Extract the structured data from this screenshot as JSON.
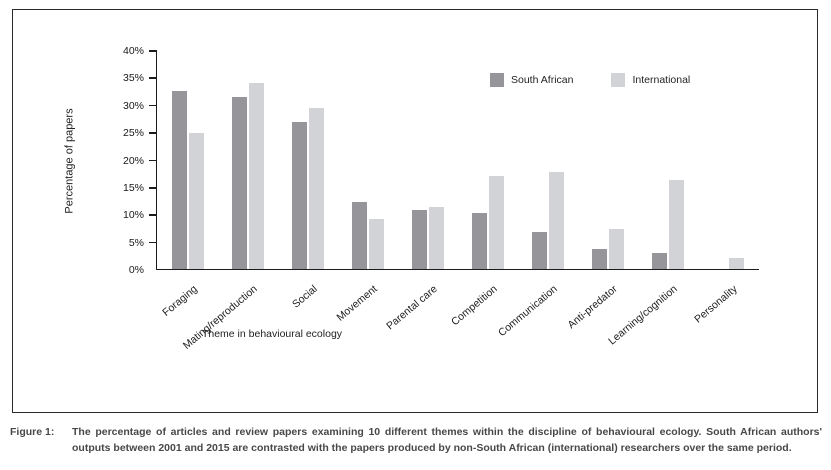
{
  "figure": {
    "caption_label": "Figure 1:",
    "caption_text": "The percentage of articles and review papers examining 10 different themes within the discipline of behavioural ecology. South African authors' outputs between 2001 and 2015 are contrasted with the papers produced by non-South African (international) researchers over the same period."
  },
  "chart_data": {
    "type": "bar",
    "title": "",
    "xlabel": "Theme in behavioural ecology",
    "ylabel": "Percentage of papers",
    "ylim": [
      0,
      40
    ],
    "ytick_step": 5,
    "ytick_suffix": "%",
    "grid": false,
    "legend_position": "inside-top-right",
    "categories": [
      "Foraging",
      "Mating/reproduction",
      "Social",
      "Movement",
      "Parental care",
      "Competition",
      "Communication",
      "Anti-predator",
      "Learning/cognition",
      "Personality"
    ],
    "series": [
      {
        "name": "South African",
        "color": "#96969a",
        "values": [
          32.5,
          31.5,
          26.8,
          12.2,
          10.8,
          10.3,
          6.8,
          3.6,
          2.9,
          0
        ]
      },
      {
        "name": "International",
        "color": "#d2d3d6",
        "values": [
          24.8,
          33.9,
          29.4,
          9.1,
          11.4,
          17.0,
          17.8,
          7.4,
          16.2,
          2.0
        ]
      }
    ]
  },
  "colors": {
    "panel_border": "#2a2a2c",
    "axis": "#1c1c1e",
    "text": "#232325",
    "caption_text": "#48484b",
    "background": "#ffffff"
  }
}
